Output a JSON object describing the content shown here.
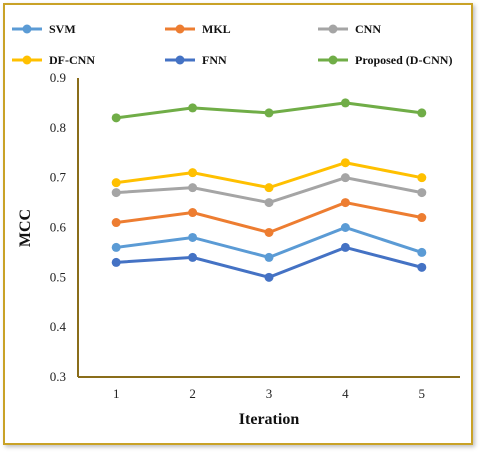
{
  "chart_data": {
    "type": "line",
    "title": "",
    "xlabel": "Iteration",
    "ylabel": "MCC",
    "categories": [
      "1",
      "2",
      "3",
      "4",
      "5"
    ],
    "ylim": [
      0.3,
      0.9
    ],
    "yticks": [
      0.3,
      0.4,
      0.5,
      0.6,
      0.7,
      0.8,
      0.9
    ],
    "ytick_labels": [
      "0.3",
      "0.4",
      "0.5",
      "0.6",
      "0.7",
      "0.8",
      "0.9"
    ],
    "grid": false,
    "legend_position": "top",
    "series": [
      {
        "name": "SVM",
        "color": "#5b9bd5",
        "values": [
          0.56,
          0.58,
          0.54,
          0.6,
          0.55
        ]
      },
      {
        "name": "MKL",
        "color": "#ed7d31",
        "values": [
          0.61,
          0.63,
          0.59,
          0.65,
          0.62
        ]
      },
      {
        "name": "CNN",
        "color": "#a5a5a5",
        "values": [
          0.67,
          0.68,
          0.65,
          0.7,
          0.67
        ]
      },
      {
        "name": "DF-CNN",
        "color": "#ffc000",
        "values": [
          0.69,
          0.71,
          0.68,
          0.73,
          0.7
        ]
      },
      {
        "name": "FNN",
        "color": "#4472c4",
        "values": [
          0.53,
          0.54,
          0.5,
          0.56,
          0.52
        ]
      },
      {
        "name": "Proposed (D-CNN)",
        "color": "#70ad47",
        "values": [
          0.82,
          0.84,
          0.83,
          0.85,
          0.83
        ]
      }
    ]
  }
}
